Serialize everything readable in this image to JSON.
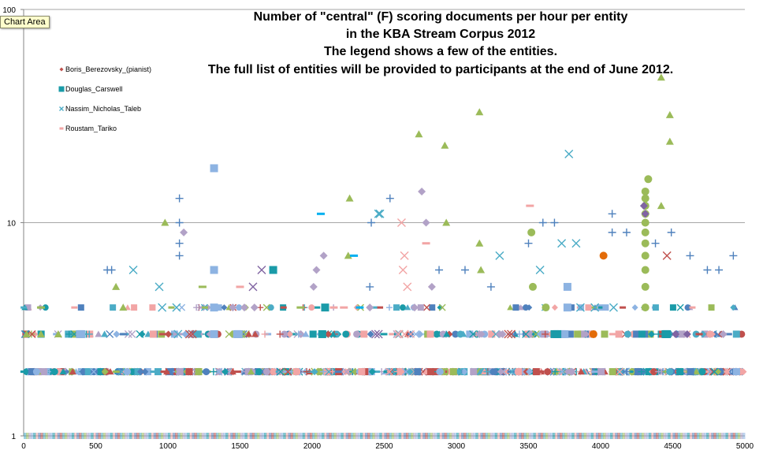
{
  "tooltip": "Chart Area",
  "chart_data": {
    "type": "scatter",
    "title_lines": [
      "Number of \"central\" (F) scoring documents per hour per entity",
      "in the KBA Stream Corpus 2012",
      "The legend shows a few of the entities.",
      "The full list of entities will be provided to participants at the end of June 2012."
    ],
    "xlabel": "",
    "ylabel": "",
    "x_scale": "linear",
    "y_scale": "log",
    "xlim": [
      0,
      5000
    ],
    "ylim": [
      1,
      100
    ],
    "x_ticks": [
      0,
      500,
      1000,
      1500,
      2000,
      2500,
      3000,
      3500,
      4000,
      4500,
      5000
    ],
    "y_ticks": [
      1,
      10,
      100
    ],
    "grid": "horizontal major lines",
    "legend_position": "top-left",
    "legend": [
      {
        "name": "Boris_Berezovsky_(pianist)",
        "color": "#c0504d",
        "marker": "diamond"
      },
      {
        "name": "Douglas_Carswell",
        "color": "#1a9ba8",
        "marker": "square"
      },
      {
        "name": "Nassim_Nicholas_Taleb",
        "color": "#4bacc6",
        "marker": "x"
      },
      {
        "name": "Roustam_Tariko",
        "color": "#f2a5a5",
        "marker": "dash"
      }
    ],
    "series": [
      {
        "color": "#9bbb59",
        "marker": "triangle",
        "points": [
          [
            980,
            10
          ],
          [
            2260,
            13
          ],
          [
            2250,
            7
          ],
          [
            2740,
            26
          ],
          [
            2920,
            23
          ],
          [
            2930,
            10
          ],
          [
            3160,
            33
          ],
          [
            3160,
            8
          ],
          [
            3170,
            6
          ],
          [
            4420,
            48
          ],
          [
            4480,
            32
          ],
          [
            4480,
            24
          ],
          [
            4420,
            12
          ],
          [
            640,
            5
          ],
          [
            690,
            4
          ],
          [
            20,
            3
          ],
          [
            120,
            3
          ],
          [
            240,
            3
          ]
        ]
      },
      {
        "color": "#9bbb59",
        "marker": "circle",
        "points": [
          [
            4330,
            16
          ],
          [
            4310,
            14
          ],
          [
            4310,
            13
          ],
          [
            4310,
            12
          ],
          [
            4310,
            11
          ],
          [
            4310,
            10
          ],
          [
            4310,
            9
          ],
          [
            4310,
            8
          ],
          [
            4310,
            7
          ],
          [
            4310,
            6
          ],
          [
            4310,
            5
          ],
          [
            4310,
            4
          ],
          [
            3520,
            9
          ],
          [
            3530,
            5
          ],
          [
            3620,
            4
          ]
        ]
      },
      {
        "color": "#4f81bd",
        "marker": "plus",
        "points": [
          [
            1080,
            13
          ],
          [
            1080,
            10
          ],
          [
            1080,
            8
          ],
          [
            1080,
            7
          ],
          [
            2540,
            13
          ],
          [
            2410,
            10
          ],
          [
            3600,
            10
          ],
          [
            3680,
            10
          ],
          [
            3500,
            8
          ],
          [
            4080,
            11
          ],
          [
            4080,
            9
          ],
          [
            4180,
            9
          ],
          [
            4490,
            9
          ],
          [
            4380,
            8
          ],
          [
            4920,
            7
          ],
          [
            4620,
            7
          ],
          [
            4740,
            6
          ],
          [
            4820,
            6
          ],
          [
            580,
            6
          ],
          [
            610,
            6
          ],
          [
            2400,
            5
          ],
          [
            2880,
            6
          ],
          [
            3060,
            6
          ],
          [
            3240,
            5
          ]
        ]
      },
      {
        "color": "#4bacc6",
        "marker": "x",
        "points": [
          [
            3780,
            21
          ],
          [
            2470,
            11
          ],
          [
            2460,
            11
          ],
          [
            760,
            6
          ],
          [
            940,
            5
          ],
          [
            960,
            4
          ],
          [
            1060,
            4
          ],
          [
            1070,
            3
          ],
          [
            3730,
            8
          ],
          [
            3830,
            8
          ],
          [
            3300,
            7
          ],
          [
            3580,
            6
          ],
          [
            3860,
            4
          ],
          [
            3960,
            4
          ],
          [
            4090,
            4
          ]
        ]
      },
      {
        "color": "#8db3e2",
        "marker": "square",
        "points": [
          [
            1320,
            18
          ],
          [
            1320,
            6
          ],
          [
            1320,
            4
          ],
          [
            1320,
            3
          ],
          [
            1480,
            3
          ],
          [
            1490,
            3
          ],
          [
            3770,
            5
          ],
          [
            3770,
            4
          ],
          [
            3750,
            3
          ],
          [
            3730,
            3
          ],
          [
            390,
            3
          ],
          [
            400,
            3
          ]
        ]
      },
      {
        "color": "#1a9ba8",
        "marker": "square",
        "points": [
          [
            1730,
            6
          ],
          [
            2090,
            4
          ],
          [
            2070,
            3
          ],
          [
            3680,
            3
          ],
          [
            3700,
            3
          ],
          [
            4450,
            3
          ],
          [
            4460,
            3
          ]
        ]
      },
      {
        "color": "#b2a2c7",
        "marker": "diamond",
        "points": [
          [
            2760,
            14
          ],
          [
            2790,
            10
          ],
          [
            1110,
            9
          ],
          [
            2080,
            7
          ],
          [
            2030,
            6
          ],
          [
            2010,
            5
          ],
          [
            2400,
            4
          ],
          [
            2830,
            5
          ],
          [
            1450,
            4
          ],
          [
            1530,
            4
          ],
          [
            1600,
            4
          ],
          [
            2710,
            4
          ],
          [
            3160,
            3
          ],
          [
            3300,
            3
          ],
          [
            3320,
            3
          ],
          [
            4850,
            3
          ]
        ]
      },
      {
        "color": "#8064a2",
        "marker": "diamond",
        "points": [
          [
            4300,
            12
          ],
          [
            4310,
            11
          ],
          [
            4520,
            3
          ],
          [
            4600,
            3
          ]
        ]
      },
      {
        "color": "#8064a2",
        "marker": "x",
        "points": [
          [
            1650,
            6
          ],
          [
            1590,
            5
          ],
          [
            2440,
            3
          ],
          [
            2460,
            3
          ]
        ]
      },
      {
        "color": "#f2a5a5",
        "marker": "x",
        "points": [
          [
            2620,
            10
          ],
          [
            2640,
            7
          ],
          [
            2630,
            6
          ],
          [
            2660,
            5
          ],
          [
            2600,
            3
          ],
          [
            2640,
            3
          ]
        ]
      },
      {
        "color": "#f2a5a5",
        "marker": "dash",
        "points": [
          [
            3510,
            12
          ],
          [
            1500,
            5
          ],
          [
            2790,
            8
          ],
          [
            2150,
            4
          ],
          [
            2220,
            4
          ]
        ]
      },
      {
        "color": "#c0504d",
        "marker": "x",
        "points": [
          [
            4460,
            7
          ],
          [
            3360,
            3
          ],
          [
            3380,
            3
          ],
          [
            1150,
            3
          ],
          [
            1170,
            3
          ]
        ]
      },
      {
        "color": "#e36c09",
        "marker": "circle",
        "points": [
          [
            4020,
            7
          ],
          [
            3950,
            3
          ]
        ]
      },
      {
        "color": "#00b0f0",
        "marker": "dash",
        "points": [
          [
            2060,
            11
          ],
          [
            2290,
            7
          ],
          [
            2330,
            4
          ]
        ]
      },
      {
        "color": "#9bbb59",
        "marker": "dash",
        "points": [
          [
            120,
            4
          ],
          [
            1240,
            5
          ],
          [
            1920,
            4
          ]
        ]
      },
      {
        "color": "#4bacc6",
        "marker": "dash_row",
        "points": [
          [
            0,
            2
          ],
          [
            5000,
            2
          ]
        ]
      },
      {
        "color": "#8db3e2",
        "marker": "band_row",
        "points": [
          [
            0,
            1
          ],
          [
            5000,
            1
          ]
        ]
      }
    ]
  }
}
